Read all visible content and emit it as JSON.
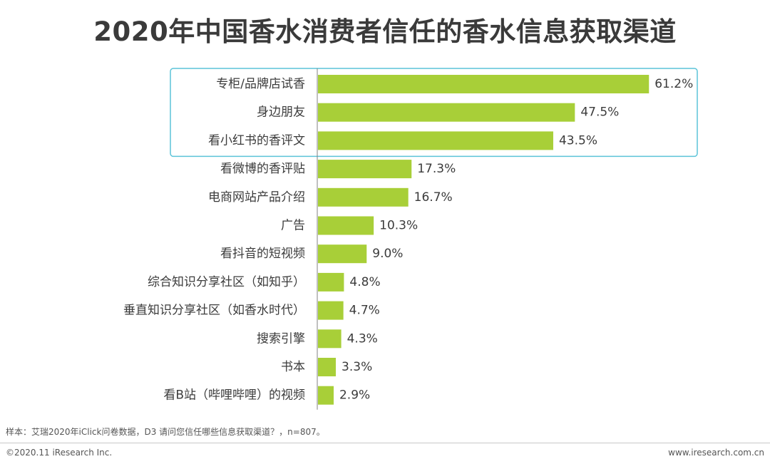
{
  "title": "2020年中国香水消费者信任的香水信息获取渠道",
  "note": "样本：艾瑞2020年iClick问卷数据，D3 请问您信任哪些信息获取渠道？，n=807。",
  "footer": {
    "copyright": "©2020.11 iResearch Inc.",
    "website": "www.iresearch.com.cn"
  },
  "colors": {
    "bar": "#a8cf38",
    "highlight_border": "#5bc4d8",
    "axis": "#808080"
  },
  "chart_data": {
    "type": "bar",
    "orientation": "horizontal",
    "title": "2020年中国香水消费者信任的香水信息获取渠道",
    "categories": [
      "专柜/品牌店试香",
      "身边朋友",
      "看小红书的香评文",
      "看微博的香评贴",
      "电商网站产品介绍",
      "广告",
      "看抖音的短视频",
      "综合知识分享社区（如知乎）",
      "垂直知识分享社区（如香水时代）",
      "搜索引擎",
      "书本",
      "看B站（哔哩哔哩）的视频"
    ],
    "values": [
      61.2,
      47.5,
      43.5,
      17.3,
      16.7,
      10.3,
      9.0,
      4.8,
      4.7,
      4.3,
      3.3,
      2.9
    ],
    "value_labels": [
      "61.2%",
      "47.5%",
      "43.5%",
      "17.3%",
      "16.7%",
      "10.3%",
      "9.0%",
      "4.8%",
      "4.7%",
      "4.3%",
      "3.3%",
      "2.9%"
    ],
    "unit": "%",
    "xlim": [
      0,
      70
    ],
    "highlighted_categories": [
      "专柜/品牌店试香",
      "身边朋友",
      "看小红书的香评文"
    ],
    "xlabel": "",
    "ylabel": ""
  }
}
